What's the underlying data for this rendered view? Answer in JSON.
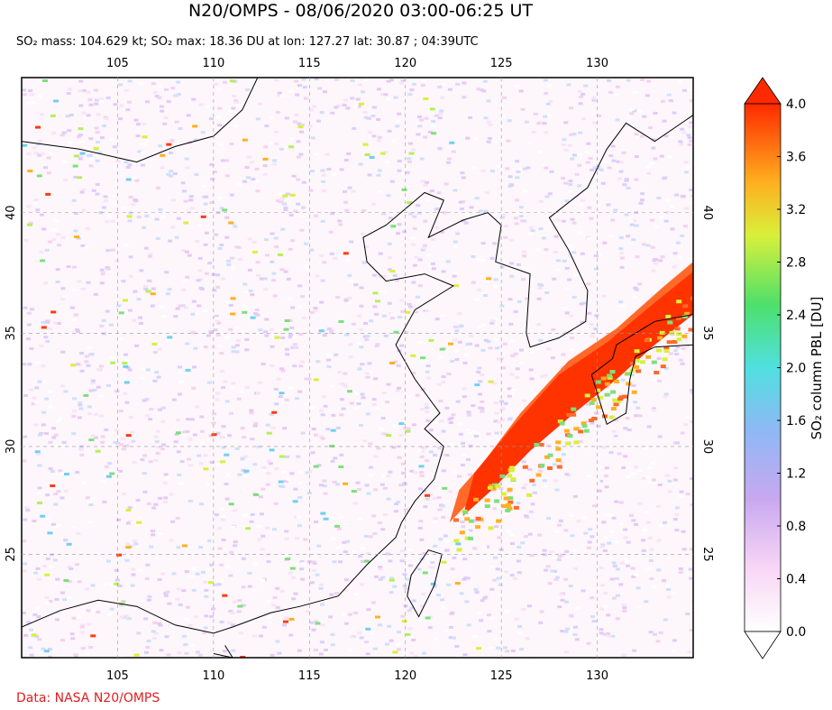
{
  "title": "N20/OMPS - 08/06/2020 03:00-06:25 UT",
  "subtitle": "SO₂ mass: 104.629 kt; SO₂ max: 18.36 DU at lon: 127.27 lat: 30.87 ; 04:39UTC",
  "source": "Data: NASA N20/OMPS",
  "map": {
    "xlim": [
      100,
      135
    ],
    "ylim": [
      20,
      45.2
    ],
    "xticks": [
      105,
      110,
      115,
      120,
      125,
      130
    ],
    "yticks": [
      25,
      30,
      35,
      40
    ],
    "grid": true
  },
  "colorbar": {
    "label": "SO₂ column PBL [DU]",
    "lim": [
      0,
      4
    ],
    "ticks": [
      {
        "value": 0,
        "label": "0.0"
      },
      {
        "value": 0.4,
        "label": "0.4"
      },
      {
        "value": 0.8,
        "label": "0.8"
      },
      {
        "value": 1.2,
        "label": "1.2"
      },
      {
        "value": 1.6,
        "label": "1.6"
      },
      {
        "value": 2,
        "label": "2.0"
      },
      {
        "value": 2.4,
        "label": "2.4"
      },
      {
        "value": 2.8,
        "label": "2.8"
      },
      {
        "value": 3.2,
        "label": "3.2"
      },
      {
        "value": 3.6,
        "label": "3.6"
      },
      {
        "value": 4,
        "label": "4.0"
      }
    ]
  }
}
